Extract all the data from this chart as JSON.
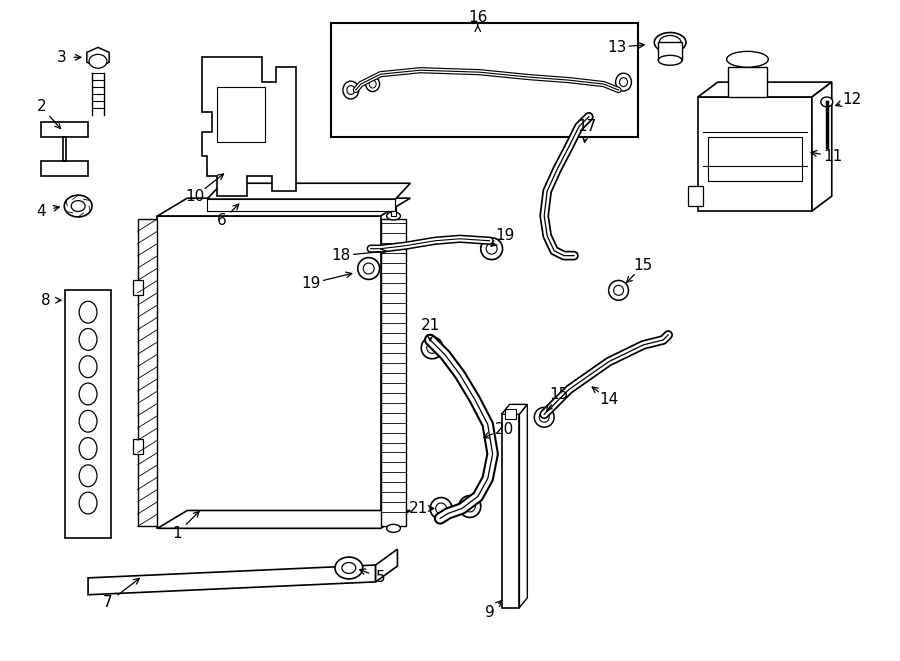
{
  "bg_color": "#ffffff",
  "line_color": "#000000",
  "fig_width": 9.0,
  "fig_height": 6.61,
  "dpi": 100,
  "lw": 1.2
}
